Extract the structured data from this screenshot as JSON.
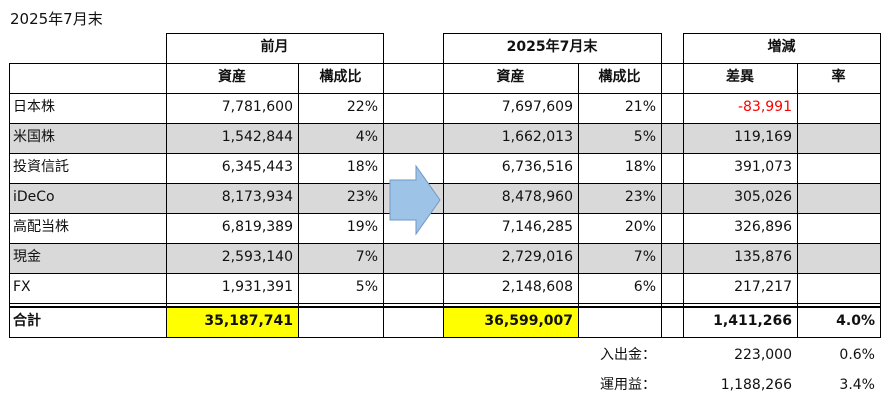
{
  "title": "2025年7月末",
  "groups": {
    "prev": "前月",
    "curr": "2025年7月末",
    "change": "増減"
  },
  "subheaders": {
    "asset": "資産",
    "ratio": "構成比",
    "diff": "差異",
    "rate": "率"
  },
  "rows": [
    {
      "name": "日本株",
      "prev_asset": "7,781,600",
      "prev_ratio": "22%",
      "curr_asset": "7,697,609",
      "curr_ratio": "21%",
      "diff": "-83,991",
      "rate": "",
      "shaded": false,
      "negative": true
    },
    {
      "name": "米国株",
      "prev_asset": "1,542,844",
      "prev_ratio": "4%",
      "curr_asset": "1,662,013",
      "curr_ratio": "5%",
      "diff": "119,169",
      "rate": "",
      "shaded": true,
      "negative": false
    },
    {
      "name": "投資信託",
      "prev_asset": "6,345,443",
      "prev_ratio": "18%",
      "curr_asset": "6,736,516",
      "curr_ratio": "18%",
      "diff": "391,073",
      "rate": "",
      "shaded": false,
      "negative": false
    },
    {
      "name": "iDeCo",
      "prev_asset": "8,173,934",
      "prev_ratio": "23%",
      "curr_asset": "8,478,960",
      "curr_ratio": "23%",
      "diff": "305,026",
      "rate": "",
      "shaded": true,
      "negative": false
    },
    {
      "name": "高配当株",
      "prev_asset": "6,819,389",
      "prev_ratio": "19%",
      "curr_asset": "7,146,285",
      "curr_ratio": "20%",
      "diff": "326,896",
      "rate": "",
      "shaded": false,
      "negative": false
    },
    {
      "name": "現金",
      "prev_asset": "2,593,140",
      "prev_ratio": "7%",
      "curr_asset": "2,729,016",
      "curr_ratio": "7%",
      "diff": "135,876",
      "rate": "",
      "shaded": true,
      "negative": false
    },
    {
      "name": "FX",
      "prev_asset": "1,931,391",
      "prev_ratio": "5%",
      "curr_asset": "2,148,608",
      "curr_ratio": "6%",
      "diff": "217,217",
      "rate": "",
      "shaded": false,
      "negative": false
    }
  ],
  "total": {
    "label": "合計",
    "prev_asset": "35,187,741",
    "curr_asset": "36,599,007",
    "diff": "1,411,266",
    "rate": "4.0%"
  },
  "breakdown": [
    {
      "label": "入出金：",
      "value": "223,000",
      "rate": "0.6%"
    },
    {
      "label": "運用益：",
      "value": "1,188,266",
      "rate": "3.4%"
    }
  ],
  "colors": {
    "total_highlight": "#ffff00",
    "row_shade": "#d9d9d9",
    "negative": "#ff0000",
    "arrow_fill": "#9dc3e6",
    "arrow_stroke": "#6f98c6"
  },
  "arrow_icon": "right-arrow-icon"
}
